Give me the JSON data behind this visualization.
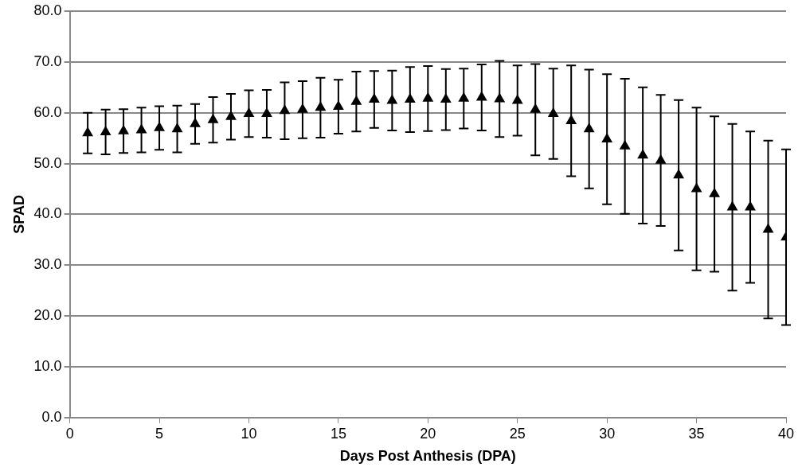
{
  "chart_data": {
    "type": "scatter",
    "xlabel": "Days Post Anthesis (DPA)",
    "ylabel": "SPAD",
    "x": [
      1,
      2,
      3,
      4,
      5,
      6,
      7,
      8,
      9,
      10,
      11,
      12,
      13,
      14,
      15,
      16,
      17,
      18,
      19,
      20,
      21,
      22,
      23,
      24,
      25,
      26,
      27,
      28,
      29,
      30,
      31,
      32,
      33,
      34,
      35,
      36,
      37,
      38,
      39,
      40
    ],
    "series": [
      {
        "color": "#000000",
        "values": [
          56.0,
          56.2,
          56.4,
          56.6,
          57.0,
          56.8,
          57.8,
          58.6,
          59.2,
          59.8,
          59.8,
          60.4,
          60.6,
          61.0,
          61.2,
          62.2,
          62.6,
          62.4,
          62.6,
          62.8,
          62.6,
          62.8,
          63.0,
          62.7,
          62.4,
          60.6,
          59.8,
          58.4,
          56.8,
          54.8,
          53.4,
          51.6,
          50.6,
          47.7,
          45.0,
          44.0,
          41.4,
          41.4,
          37.0,
          35.5
        ],
        "errors": [
          4.0,
          4.4,
          4.3,
          4.4,
          4.3,
          4.6,
          3.9,
          4.5,
          4.5,
          4.6,
          4.7,
          5.6,
          5.6,
          5.9,
          5.3,
          5.9,
          5.6,
          5.9,
          6.4,
          6.4,
          6.0,
          5.9,
          6.5,
          7.5,
          6.9,
          9.0,
          8.9,
          10.9,
          11.7,
          12.8,
          13.3,
          13.4,
          12.9,
          14.8,
          16.0,
          15.3,
          16.4,
          14.9,
          17.5,
          17.3
        ]
      }
    ],
    "xlim": [
      0,
      40
    ],
    "xticks": [
      0,
      5,
      10,
      15,
      20,
      25,
      30,
      35,
      40
    ],
    "ylim": [
      0,
      80
    ],
    "yticks": [
      {
        "value": 0,
        "label": "0.0"
      },
      {
        "value": 10,
        "label": "10.0"
      },
      {
        "value": 20,
        "label": "20.0"
      },
      {
        "value": 30,
        "label": "30.0"
      },
      {
        "value": 40,
        "label": "40.0"
      },
      {
        "value": 50,
        "label": "50.0"
      },
      {
        "value": 60,
        "label": "60.0"
      },
      {
        "value": 70,
        "label": "70.0"
      },
      {
        "value": 80,
        "label": "80.0"
      }
    ],
    "grid": "y",
    "marker": "triangle"
  }
}
